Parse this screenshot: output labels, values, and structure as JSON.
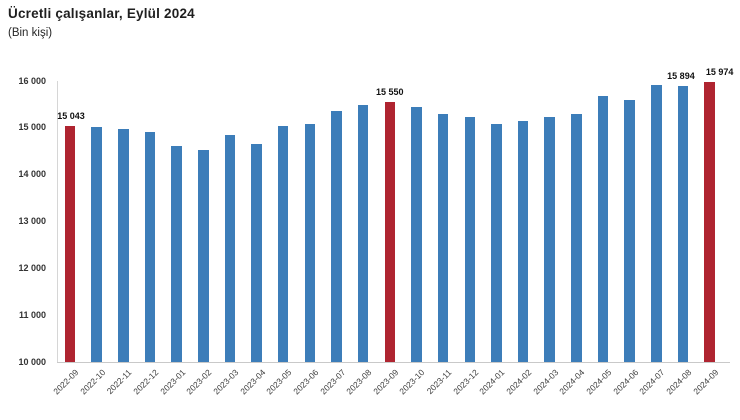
{
  "title": "Ücretli çalışanlar, Eylül 2024",
  "subtitle": "(Bin kişi)",
  "chart_data": {
    "type": "bar",
    "title": "Ücretli çalışanlar, Eylül 2024",
    "subtitle": "(Bin kişi)",
    "xlabel": "",
    "ylabel": "Bin kişi",
    "ylim": [
      10000,
      16000
    ],
    "y_tick_step": 1000,
    "y_tick_labels": [
      "16 000",
      "15 000",
      "14 000",
      "13 000",
      "12 000",
      "11 000",
      "10 000"
    ],
    "grid": false,
    "legend": "none",
    "bar_color": "#3C7DB9",
    "highlight_color": "#AF2430",
    "highlight_indices": [
      0,
      12,
      24
    ],
    "categories": [
      "2022-09",
      "2022-10",
      "2022-11",
      "2022-12",
      "2023-01",
      "2023-02",
      "2023-03",
      "2023-04",
      "2023-05",
      "2023-06",
      "2023-07",
      "2023-08",
      "2023-09",
      "2023-10",
      "2023-11",
      "2023-12",
      "2024-01",
      "2024-02",
      "2024-03",
      "2024-04",
      "2024-05",
      "2024-06",
      "2024-07",
      "2024-08",
      "2024-09"
    ],
    "values": [
      15043,
      15020,
      14970,
      14920,
      14620,
      14520,
      14850,
      14650,
      15030,
      15080,
      15360,
      15485,
      15550,
      15440,
      15290,
      15230,
      15090,
      15140,
      15230,
      15290,
      15690,
      15600,
      15910,
      15894,
      15974
    ],
    "data_labels": [
      {
        "index": 0,
        "text": "15 043",
        "dx": 1
      },
      {
        "index": 12,
        "text": "15 550",
        "dx": 0
      },
      {
        "index": 23,
        "text": "15 894",
        "dx": -2
      },
      {
        "index": 24,
        "text": "15 974",
        "dx": 10
      }
    ]
  }
}
